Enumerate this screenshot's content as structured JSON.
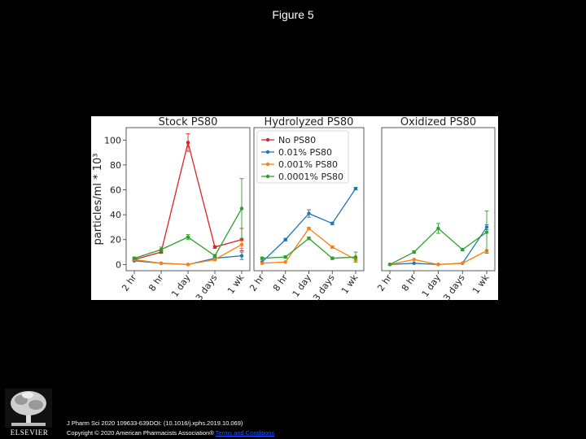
{
  "title": "Figure 5",
  "figure": {
    "ylabel": "particles/ml * 10³",
    "legend": [
      "No PS80",
      "0.01% PS80",
      "0.001% PS80",
      "0.0001% PS80"
    ]
  },
  "chart_data": [
    {
      "type": "line",
      "title": "Stock PS80",
      "categories": [
        "2 hr",
        "8 hr",
        "1 day",
        "3 days",
        "1 wk"
      ],
      "ylabel": "particles/ml * 10³",
      "ylim": [
        -5,
        110
      ],
      "yticks": [
        0,
        20,
        40,
        60,
        80,
        100
      ],
      "series": [
        {
          "name": "No PS80",
          "color": "#d62728",
          "values": [
            4,
            10,
            98,
            14,
            20
          ],
          "err": [
            1,
            1,
            7,
            1,
            9
          ]
        },
        {
          "name": "0.01% PS80",
          "color": "#1f77b4",
          "values": [
            3,
            1,
            0,
            5,
            7
          ],
          "err": [
            0.5,
            0.5,
            0.5,
            1,
            3
          ]
        },
        {
          "name": "0.001% PS80",
          "color": "#ff7f0e",
          "values": [
            4,
            1,
            0,
            4,
            16
          ],
          "err": [
            0.5,
            0.5,
            0.5,
            1,
            3
          ]
        },
        {
          "name": "0.0001% PS80",
          "color": "#2ca02c",
          "values": [
            5,
            12,
            22,
            7,
            45
          ],
          "err": [
            1,
            2,
            2,
            1,
            24
          ]
        }
      ]
    },
    {
      "type": "line",
      "title": "Hydrolyzed PS80",
      "categories": [
        "2 hr",
        "8 hr",
        "1 day",
        "3 days",
        "1 wk"
      ],
      "ylim": [
        -5,
        110
      ],
      "series": [
        {
          "name": "0.01% PS80",
          "color": "#1f77b4",
          "values": [
            2,
            20,
            41,
            33,
            61
          ],
          "err": [
            0.5,
            1,
            3,
            1,
            1
          ]
        },
        {
          "name": "0.001% PS80",
          "color": "#ff7f0e",
          "values": [
            1,
            2,
            29,
            14,
            4
          ],
          "err": [
            0.5,
            0.5,
            1,
            1,
            1
          ]
        },
        {
          "name": "0.0001% PS80",
          "color": "#2ca02c",
          "values": [
            5,
            6,
            21,
            5,
            6
          ],
          "err": [
            1,
            1,
            1,
            1,
            4
          ]
        }
      ]
    },
    {
      "type": "line",
      "title": "Oxidized PS80",
      "categories": [
        "2 hr",
        "8 hr",
        "1 day",
        "3 days",
        "1 wk"
      ],
      "ylim": [
        -5,
        110
      ],
      "series": [
        {
          "name": "0.01% PS80",
          "color": "#1f77b4",
          "values": [
            0,
            1,
            0,
            1,
            30
          ],
          "err": [
            0.5,
            0.5,
            0.5,
            0.5,
            2
          ]
        },
        {
          "name": "0.001% PS80",
          "color": "#ff7f0e",
          "values": [
            0,
            4,
            0,
            1,
            11
          ],
          "err": [
            0.5,
            0.5,
            0.5,
            0.5,
            1
          ]
        },
        {
          "name": "0.0001% PS80",
          "color": "#2ca02c",
          "values": [
            0,
            10,
            29,
            12,
            26
          ],
          "err": [
            0.5,
            1,
            4,
            1,
            17
          ]
        }
      ]
    }
  ],
  "logo": {
    "text": "ELSEVIER"
  },
  "footer": {
    "line1": "J Pharm Sci 2020 109633-639DOI: (10.1016/j.xphs.2019.10.069)",
    "line2": "Copyright © 2020 American Pharmacists Association®",
    "link": "Terms and Conditions"
  }
}
